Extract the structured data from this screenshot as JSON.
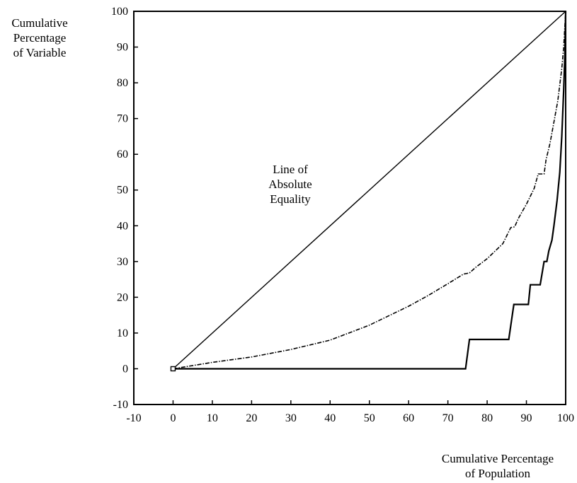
{
  "chart_data": {
    "type": "line",
    "title": "",
    "ylabel": [
      "Cumulative",
      "Percentage",
      "of Variable"
    ],
    "xlabel": [
      "Cumulative Percentage",
      "of Population"
    ],
    "xlim": [
      -10,
      100
    ],
    "ylim": [
      -10,
      100
    ],
    "xticks": [
      -10,
      0,
      10,
      20,
      30,
      40,
      50,
      60,
      70,
      80,
      90,
      100
    ],
    "yticks": [
      -10,
      0,
      10,
      20,
      30,
      40,
      50,
      60,
      70,
      80,
      90,
      100
    ],
    "grid": false,
    "annotations": [
      {
        "lines": [
          "Line of",
          "Absolute",
          "Equality"
        ],
        "x": 37,
        "y": 52
      }
    ],
    "marker": {
      "x": 0,
      "y": 0
    },
    "series": [
      {
        "style": "solid",
        "points": [
          [
            0,
            0
          ],
          [
            100,
            100
          ]
        ]
      },
      {
        "style": "dashed",
        "points": [
          [
            0,
            0
          ],
          [
            10,
            1.8
          ],
          [
            20,
            3.3
          ],
          [
            30,
            5.4
          ],
          [
            40,
            8
          ],
          [
            50,
            12.2
          ],
          [
            60,
            17.5
          ],
          [
            65,
            20.5
          ],
          [
            70,
            23.8
          ],
          [
            74,
            26.5
          ],
          [
            75.5,
            26.8
          ],
          [
            77,
            28.3
          ],
          [
            80,
            30.8
          ],
          [
            84,
            35
          ],
          [
            86,
            39.5
          ],
          [
            87,
            39.7
          ],
          [
            88,
            42.2
          ],
          [
            90,
            46
          ],
          [
            92,
            50.5
          ],
          [
            93,
            54.5
          ],
          [
            94.5,
            54.5
          ],
          [
            95,
            58.5
          ],
          [
            96,
            63
          ],
          [
            97,
            69
          ],
          [
            98,
            75
          ],
          [
            99,
            84
          ],
          [
            99.5,
            90
          ],
          [
            100,
            100
          ]
        ]
      },
      {
        "style": "solid-heavy",
        "points": [
          [
            0,
            0
          ],
          [
            74.5,
            0
          ],
          [
            75.5,
            8.2
          ],
          [
            85.5,
            8.2
          ],
          [
            86.8,
            18
          ],
          [
            90.5,
            18
          ],
          [
            91,
            23.5
          ],
          [
            93.5,
            23.5
          ],
          [
            94.5,
            30
          ],
          [
            95.2,
            30
          ],
          [
            95.7,
            33
          ],
          [
            96.5,
            36
          ],
          [
            97,
            40
          ],
          [
            97.8,
            47
          ],
          [
            98.5,
            55
          ],
          [
            99,
            65
          ],
          [
            99.5,
            78
          ],
          [
            99.8,
            88
          ],
          [
            100,
            100
          ]
        ]
      }
    ]
  }
}
